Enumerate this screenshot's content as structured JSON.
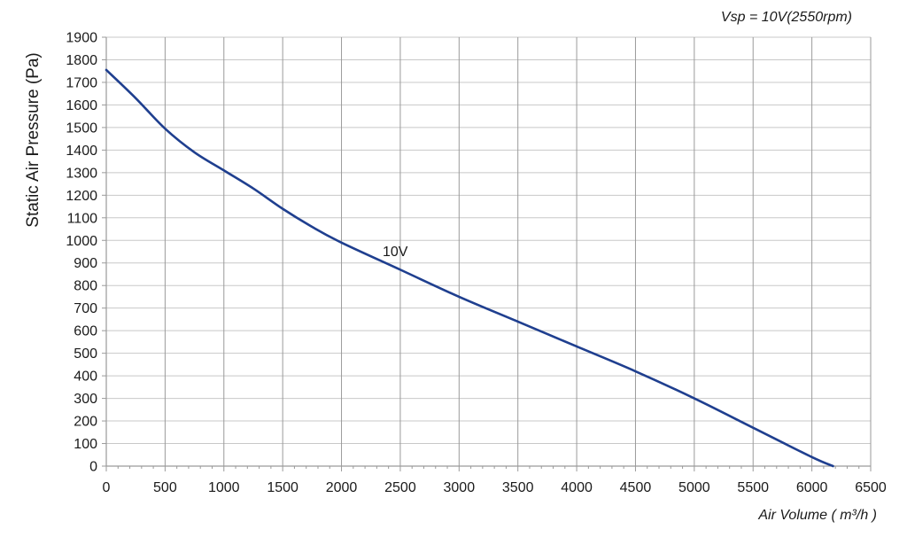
{
  "chart_data": {
    "type": "line",
    "title": "",
    "annotation_top_right": "Vsp = 10V(2550rpm)",
    "xlabel": "Air Volume ( m³/h )",
    "ylabel": "Static Air Pressure  (Pa)",
    "xlim": [
      0,
      6500
    ],
    "ylim": [
      0,
      1900
    ],
    "xticks": [
      0,
      500,
      1000,
      1500,
      2000,
      2500,
      3000,
      3500,
      4000,
      4500,
      5000,
      5500,
      6000,
      6500
    ],
    "yticks": [
      0,
      100,
      200,
      300,
      400,
      500,
      600,
      700,
      800,
      900,
      1000,
      1100,
      1200,
      1300,
      1400,
      1500,
      1600,
      1700,
      1800,
      1900
    ],
    "grid": "vertical-major, horizontal-every-100",
    "series": [
      {
        "name": "10V",
        "color": "#1f3f8f",
        "x": [
          0,
          250,
          500,
          750,
          1000,
          1250,
          1500,
          1750,
          2000,
          2500,
          3000,
          3500,
          4000,
          4500,
          5000,
          5500,
          6000,
          6180
        ],
        "y": [
          1755,
          1630,
          1495,
          1390,
          1310,
          1230,
          1140,
          1060,
          990,
          870,
          750,
          640,
          530,
          420,
          300,
          170,
          40,
          0
        ]
      }
    ],
    "series_label": {
      "text": "10V",
      "x": 2350,
      "y": 930
    }
  }
}
